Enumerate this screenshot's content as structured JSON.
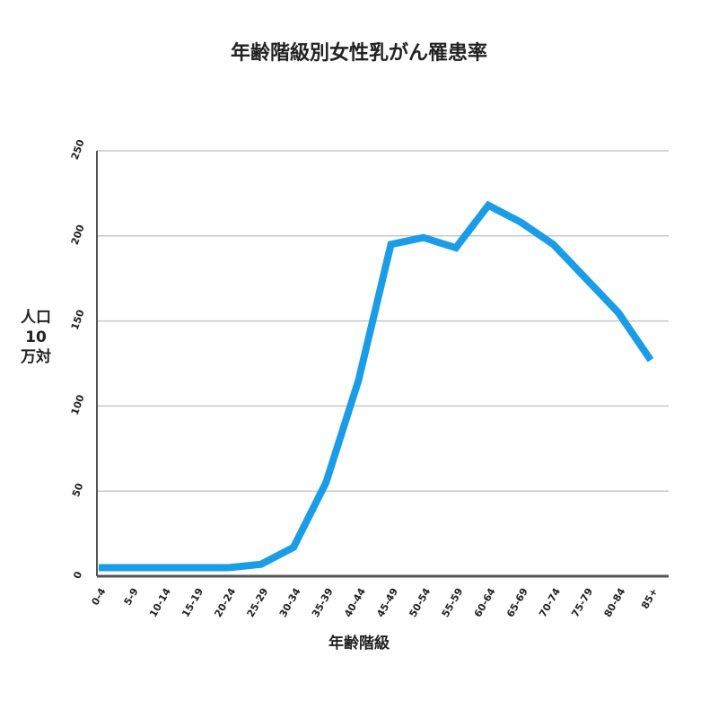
{
  "chart_data": {
    "type": "line",
    "title": "年齢階級別女性乳がん罹患率",
    "x_label": "年齢階級",
    "y_label": "人口10万対",
    "categories": [
      "0-4",
      "5-9",
      "10-14",
      "15-19",
      "20-24",
      "25-29",
      "30-34",
      "35-39",
      "40-44",
      "45-49",
      "50-54",
      "55-59",
      "60-64",
      "65-69",
      "70-74",
      "75-79",
      "80-84",
      "85+"
    ],
    "series": [
      {
        "name": "女性乳がん罹患率",
        "color": "#1a9de6",
        "values": [
          5,
          5,
          5,
          5,
          5,
          7,
          17,
          55,
          115,
          195,
          199,
          193,
          218,
          208,
          195,
          175,
          155,
          127
        ]
      }
    ],
    "ylim": [
      0,
      250
    ],
    "yticks": [
      0,
      50,
      100,
      150,
      200,
      250
    ],
    "grid": true
  }
}
